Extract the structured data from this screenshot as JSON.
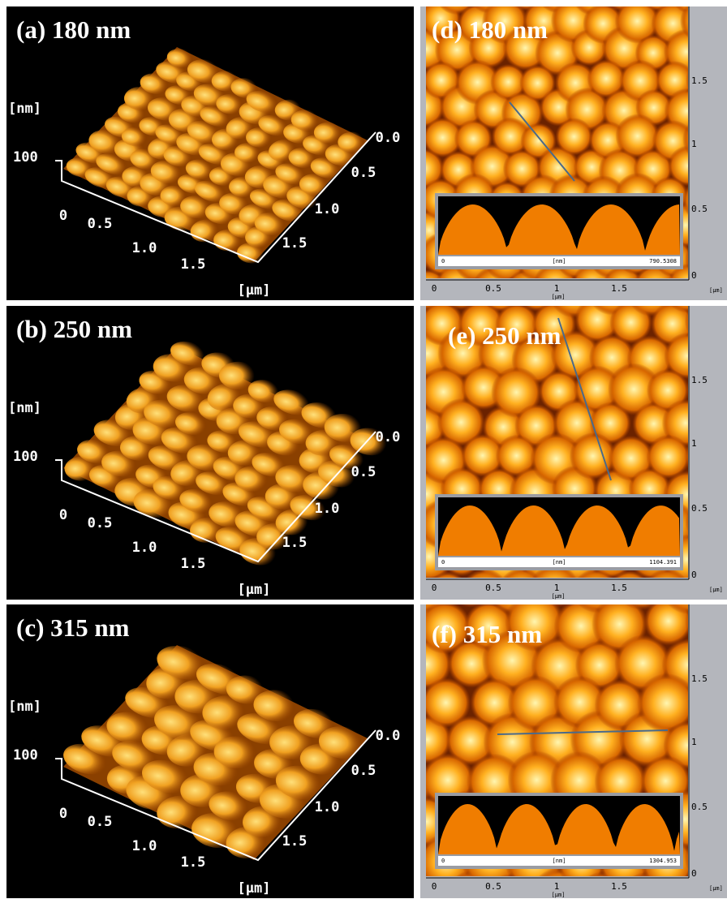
{
  "panels": [
    {
      "label": "(a) 180 nm",
      "z_unit": "[nm]",
      "z_tick": "100",
      "x_ticks": [
        "0",
        "0.5",
        "1.0",
        "1.5"
      ],
      "y_ticks": [
        "0.0",
        "0.5",
        "1.0",
        "1.5"
      ],
      "unit": "[µm]"
    },
    {
      "label": "(b) 250 nm",
      "z_unit": "[nm]",
      "z_tick": "100",
      "x_ticks": [
        "0",
        "0.5",
        "1.0",
        "1.5"
      ],
      "y_ticks": [
        "0.0",
        "0.5",
        "1.0",
        "1.5"
      ],
      "unit": "[µm]"
    },
    {
      "label": "(c) 315 nm",
      "z_unit": "[nm]",
      "z_tick": "100",
      "x_ticks": [
        "0",
        "0.5",
        "1.0",
        "1.5"
      ],
      "y_ticks": [
        "0.0",
        "0.5",
        "1.0",
        "1.5"
      ],
      "unit": "[µm]"
    }
  ],
  "maps": [
    {
      "label": "(d) 180 nm",
      "y_ticks": [
        "1.5",
        "1",
        "0.5",
        "0"
      ],
      "x_ticks": [
        "0",
        "0.5",
        "1",
        "1.5"
      ],
      "unit": "[µm]",
      "profile": {
        "start": "0",
        "unit": "[nm]",
        "end": "790.5308"
      }
    },
    {
      "label": "(e) 250 nm",
      "y_ticks": [
        "1.5",
        "1",
        "0.5",
        "0"
      ],
      "x_ticks": [
        "0",
        "0.5",
        "1",
        "1.5"
      ],
      "unit": "[µm]",
      "profile": {
        "start": "0",
        "unit": "[nm]",
        "end": "1104.391"
      }
    },
    {
      "label": "(f) 315 nm",
      "y_ticks": [
        "1.5",
        "1",
        "0.5",
        "0"
      ],
      "x_ticks": [
        "0",
        "0.5",
        "1",
        "1.5"
      ],
      "unit": "[µm]",
      "profile": {
        "start": "0",
        "unit": "[nm]",
        "end": "1304.953"
      }
    }
  ]
}
